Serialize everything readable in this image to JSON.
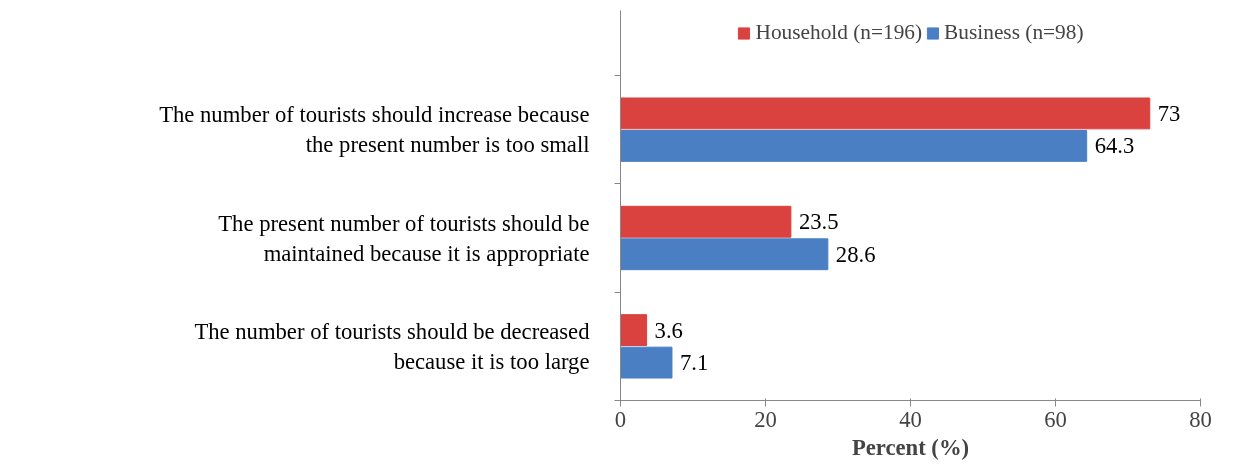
{
  "chart_data": {
    "type": "bar",
    "orientation": "horizontal",
    "xlabel": "Percent (%)",
    "categories": [
      "The number of tourists should increase because the present number is too small",
      "The present number of tourists should be maintained because it is appropriate",
      "The number of tourists should be decreased because it is too large"
    ],
    "series": [
      {
        "name": "Household (n=196)",
        "color": "#d9423f",
        "values": [
          73,
          23.5,
          3.6
        ]
      },
      {
        "name": "Business (n=98)",
        "color": "#4a7fc4",
        "values": [
          64.3,
          28.6,
          7.1
        ]
      }
    ],
    "xlim": [
      0,
      80
    ],
    "xticks": [
      0,
      20,
      40,
      60,
      80
    ],
    "grid": false,
    "legend": "top",
    "data_labels": true
  }
}
